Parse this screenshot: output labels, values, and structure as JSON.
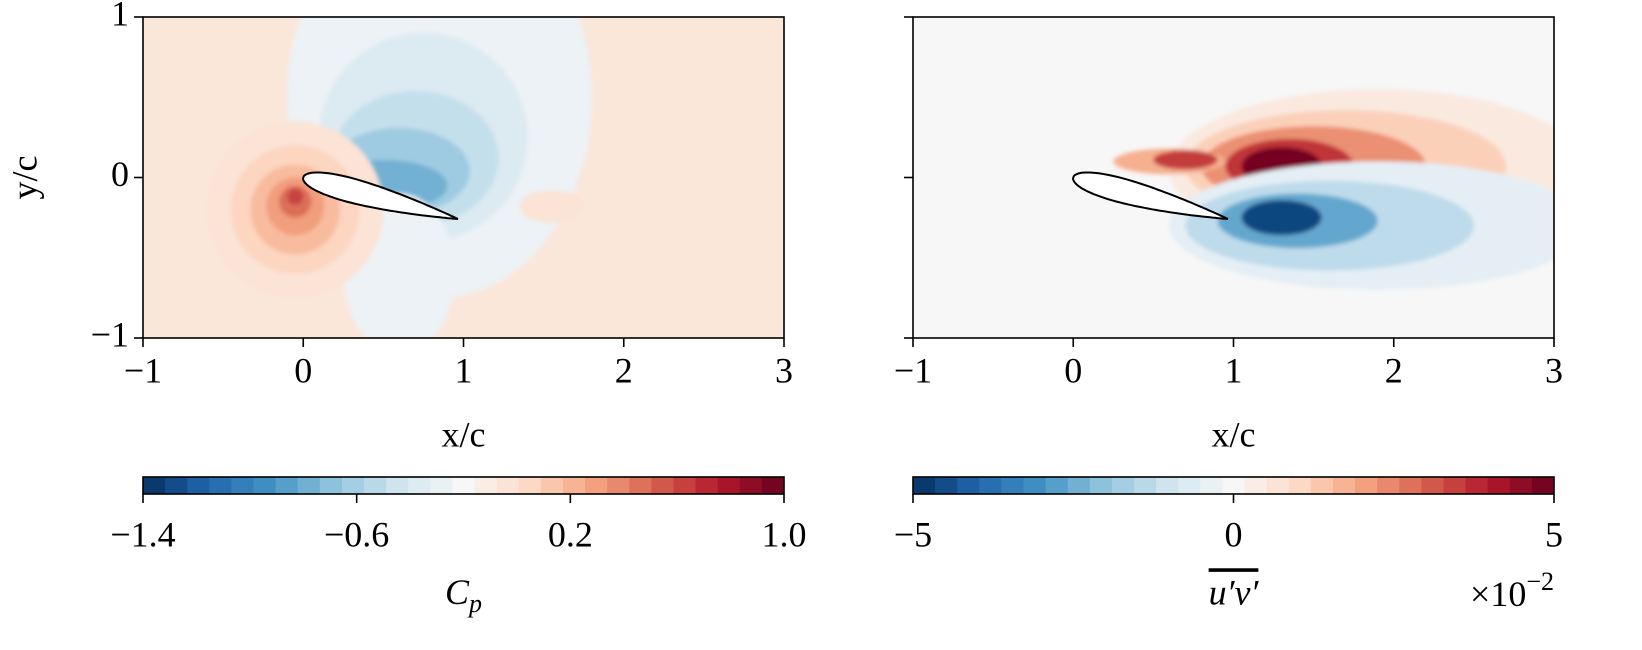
{
  "chart_data": [
    {
      "type": "contour",
      "xlabel": "x/c",
      "ylabel": "y/c",
      "xlim": [
        -1,
        3
      ],
      "ylim": [
        -1,
        1
      ],
      "xticks": [
        {
          "value": -1,
          "label": "−1"
        },
        0,
        1,
        2,
        3
      ],
      "yticks": [
        {
          "value": -1,
          "label": "−1"
        },
        0,
        1
      ],
      "colormap": [
        "#053061",
        "#2166ac",
        "#4393c3",
        "#92c5de",
        "#d1e5f0",
        "#f7f7f7",
        "#fddbc7",
        "#f4a582",
        "#d6604d",
        "#b2182b",
        "#67001f"
      ],
      "colorbar": {
        "label": {
          "main": "C",
          "sub": "p"
        },
        "lim": [
          -1.4,
          1.0
        ],
        "ticks": [
          {
            "value": -1.4,
            "label": "−1.4"
          },
          {
            "value": -0.6,
            "label": "−0.6"
          },
          0.2,
          {
            "value": 1,
            "label": "1.0"
          }
        ]
      }
    },
    {
      "type": "contour",
      "xlabel": "x/c",
      "sharey": true,
      "xlim": [
        -1,
        3
      ],
      "ylim": [
        -1,
        1
      ],
      "xticks": [
        {
          "value": -1,
          "label": "−1"
        },
        0,
        1,
        2,
        3
      ],
      "colormap": [
        "#053061",
        "#2166ac",
        "#4393c3",
        "#92c5de",
        "#d1e5f0",
        "#f7f7f7",
        "#fddbc7",
        "#f4a582",
        "#d6604d",
        "#b2182b",
        "#67001f"
      ],
      "colorbar": {
        "label": "u′v′",
        "overline": true,
        "lim": [
          -5,
          5
        ],
        "ticks": [
          {
            "value": -5,
            "label": "−5"
          },
          0,
          5
        ],
        "offset": {
          "base": "×10",
          "exponent": "−2"
        }
      }
    }
  ]
}
